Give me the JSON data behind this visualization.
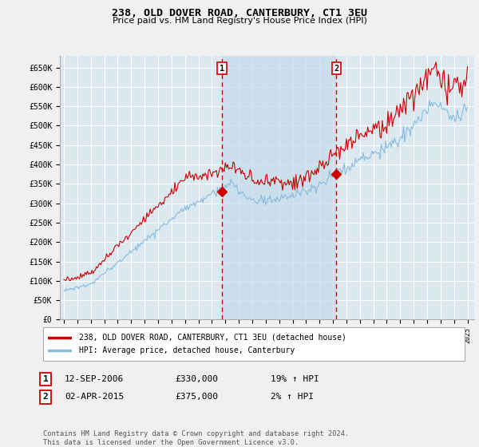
{
  "title": "238, OLD DOVER ROAD, CANTERBURY, CT1 3EU",
  "subtitle": "Price paid vs. HM Land Registry's House Price Index (HPI)",
  "legend_line1": "238, OLD DOVER ROAD, CANTERBURY, CT1 3EU (detached house)",
  "legend_line2": "HPI: Average price, detached house, Canterbury",
  "annotation1_date": "12-SEP-2006",
  "annotation1_price": "£330,000",
  "annotation1_hpi": "19% ↑ HPI",
  "annotation2_date": "02-APR-2015",
  "annotation2_price": "£375,000",
  "annotation2_hpi": "2% ↑ HPI",
  "footnote": "Contains HM Land Registry data © Crown copyright and database right 2024.\nThis data is licensed under the Open Government Licence v3.0.",
  "plot_color_red": "#cc0000",
  "plot_color_blue": "#88bbdd",
  "plot_color_blue_legend": "#88bbdd",
  "bg_color": "#dce8f0",
  "bg_color_shaded": "#c8dcea",
  "grid_color": "#ffffff",
  "fig_bg": "#f0f0f0",
  "anno_vline_color": "#cc0000",
  "anno1_x_year": 2006.75,
  "anno2_x_year": 2015.25,
  "sale1_price": 330000,
  "sale2_price": 375000,
  "ylim_min": 0,
  "ylim_max": 680000,
  "yticks": [
    0,
    50000,
    100000,
    150000,
    200000,
    250000,
    300000,
    350000,
    400000,
    450000,
    500000,
    550000,
    600000,
    650000
  ],
  "xlim_min": 1994.7,
  "xlim_max": 2025.5,
  "years_start": 1995,
  "years_end": 2025
}
